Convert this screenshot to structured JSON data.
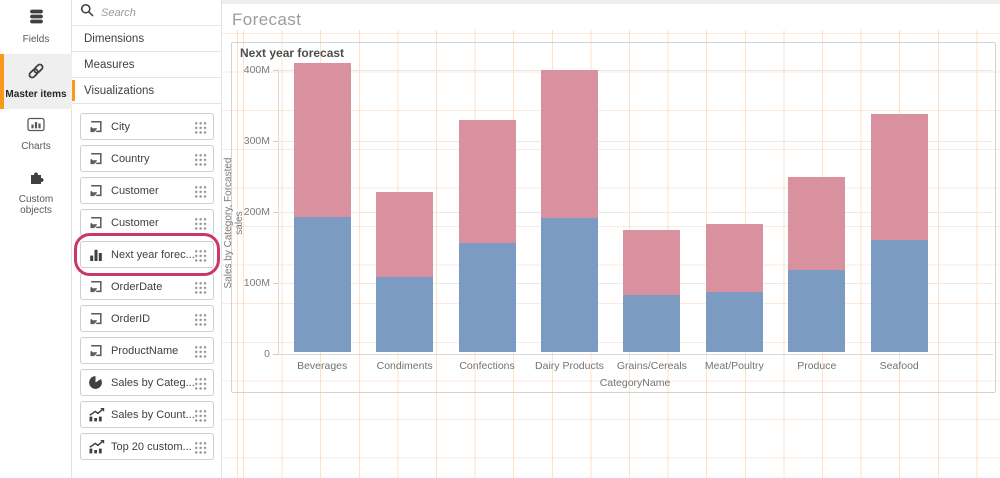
{
  "colors": {
    "accent_orange": "#f8981d",
    "annotation_ring": "#c83a64",
    "bar_blue": "#7b9bc3",
    "bar_pink": "#d9919f",
    "grid_peach": "#f6a05a"
  },
  "nav": {
    "items": [
      {
        "id": "fields",
        "label": "Fields",
        "icon": "database-icon",
        "active": false
      },
      {
        "id": "master-items",
        "label": "Master items",
        "icon": "link-icon",
        "active": true
      },
      {
        "id": "charts",
        "label": "Charts",
        "icon": "charts-icon",
        "active": false
      },
      {
        "id": "custom-objects",
        "label": "Custom objects",
        "icon": "puzzle-icon",
        "active": false
      }
    ]
  },
  "panel": {
    "search_placeholder": "Search",
    "sections": [
      {
        "id": "dimensions",
        "label": "Dimensions",
        "active": false
      },
      {
        "id": "measures",
        "label": "Measures",
        "active": false
      },
      {
        "id": "visualizations",
        "label": "Visualizations",
        "active": true
      }
    ],
    "items": [
      {
        "label": "City",
        "icon": "dimension-icon",
        "highlighted": false
      },
      {
        "label": "Country",
        "icon": "dimension-icon",
        "highlighted": false
      },
      {
        "label": "Customer",
        "icon": "dimension-icon",
        "highlighted": false
      },
      {
        "label": "Customer",
        "icon": "dimension-icon",
        "highlighted": false
      },
      {
        "label": "Next year forec...",
        "icon": "barchart-icon",
        "highlighted": true
      },
      {
        "label": "OrderDate",
        "icon": "dimension-icon",
        "highlighted": false
      },
      {
        "label": "OrderID",
        "icon": "dimension-icon",
        "highlighted": false
      },
      {
        "label": "ProductName",
        "icon": "dimension-icon",
        "highlighted": false
      },
      {
        "label": "Sales by Categ...",
        "icon": "pie-icon",
        "highlighted": false
      },
      {
        "label": "Sales by Count...",
        "icon": "trend-icon",
        "highlighted": false
      },
      {
        "label": "Top 20 custom...",
        "icon": "trend-icon",
        "highlighted": false
      }
    ]
  },
  "main": {
    "sheet_title": "Forecast"
  },
  "chart_data": {
    "type": "bar",
    "stacked": true,
    "title": "Next year forecast",
    "categories": [
      "Beverages",
      "Condiments",
      "Confections",
      "Dairy Products",
      "Grains/Cereals",
      "Meat/Poultry",
      "Produce",
      "Seafood"
    ],
    "series": [
      {
        "name": "Sales by Category",
        "color": "#7b9bc3",
        "values": [
          190,
          106,
          154,
          188,
          80,
          84,
          115,
          158
        ]
      },
      {
        "name": "Forcasted sales",
        "color": "#d9919f",
        "values": [
          216,
          119,
          173,
          209,
          92,
          96,
          131,
          177
        ]
      }
    ],
    "unit": "M",
    "xlabel": "CategoryName",
    "ylabel": "Sales by Category, Forcasted sales",
    "ylim": [
      0,
      400
    ],
    "yticks": [
      {
        "value": 0,
        "label": "0"
      },
      {
        "value": 100,
        "label": "100M"
      },
      {
        "value": 200,
        "label": "200M"
      },
      {
        "value": 300,
        "label": "300M"
      },
      {
        "value": 400,
        "label": "400M"
      }
    ],
    "grid": true,
    "legend": "none"
  }
}
